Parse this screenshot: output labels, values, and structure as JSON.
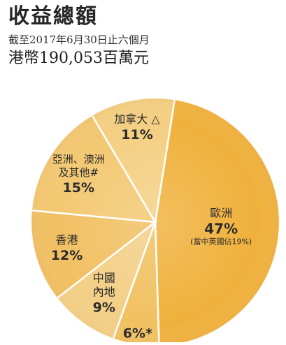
{
  "header": {
    "title": "收益總額",
    "subtitle": "截至2017年6月30日止六個月",
    "total": "港幣190,053百萬元"
  },
  "chart_data": {
    "type": "pie",
    "title": "收益總額",
    "subtitle": "截至2017年6月30日止六個月",
    "total_label": "港幣190,053百萬元",
    "unit": "%",
    "slices": [
      {
        "label_lines": [
          "歐洲"
        ],
        "value": 47,
        "value_text": "47%",
        "note": "(當中英國佔19%)",
        "color": "#f0b13c"
      },
      {
        "label_lines": [],
        "value": 6,
        "value_text": "6%*",
        "note": "",
        "color": "#f1c161"
      },
      {
        "label_lines": [
          "中國",
          "內地"
        ],
        "value": 9,
        "value_text": "9%",
        "note": "",
        "color": "#f3cf86"
      },
      {
        "label_lines": [
          "香港"
        ],
        "value": 12,
        "value_text": "12%",
        "note": "",
        "color": "#f1c062"
      },
      {
        "label_lines": [
          "亞洲、澳洲",
          "及其他#"
        ],
        "value": 15,
        "value_text": "15%",
        "note": "",
        "color": "#f3c872"
      },
      {
        "label_lines": [
          "加拿大 △"
        ],
        "value": 11,
        "value_text": "11%",
        "note": "",
        "color": "#f4cf82"
      }
    ]
  }
}
